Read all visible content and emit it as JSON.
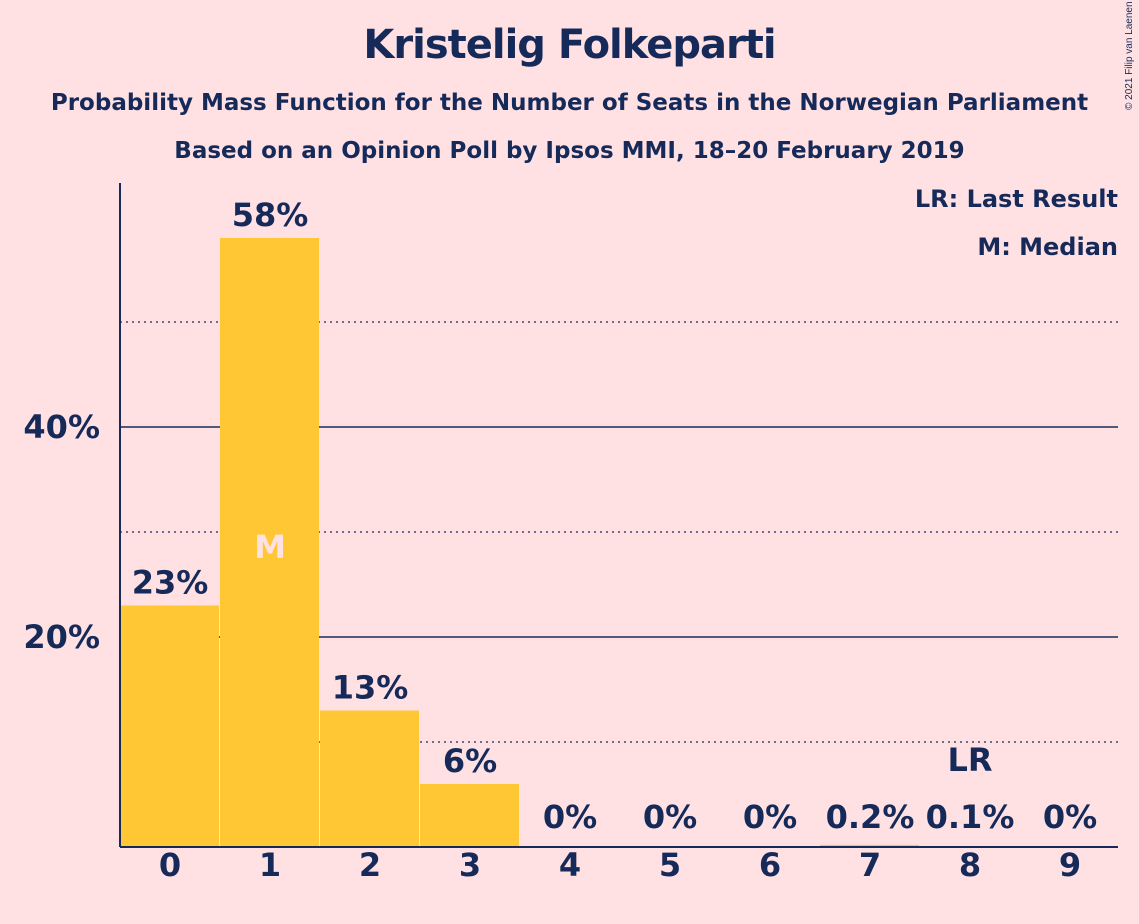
{
  "chart_data": {
    "type": "bar",
    "title": "Kristelig Folkeparti",
    "subtitle": "Probability Mass Function for the Number of Seats in the Norwegian Parliament",
    "subtitle2": "Based on an Opinion Poll by Ipsos MMI, 18–20 February 2019",
    "copyright": "© 2021 Filip van Laenen",
    "categories": [
      "0",
      "1",
      "2",
      "3",
      "4",
      "5",
      "6",
      "7",
      "8",
      "9"
    ],
    "values": [
      23,
      58,
      13,
      6,
      0,
      0,
      0,
      0.2,
      0.1,
      0
    ],
    "value_labels": [
      "23%",
      "58%",
      "13%",
      "6%",
      "0%",
      "0%",
      "0%",
      "0.2%",
      "0.1%",
      "0%"
    ],
    "ylim": [
      0,
      63
    ],
    "yticks": [
      20,
      40
    ],
    "ytick_labels": [
      "20%",
      "40%"
    ],
    "dotted_gridlines": [
      10,
      30,
      50
    ],
    "solid_gridlines": [
      20,
      40
    ],
    "median_index": 1,
    "median_marker": "M",
    "last_result_index": 8,
    "last_result_marker": "LR",
    "legend": [
      "LR: Last Result",
      "M: Median"
    ],
    "legend_position": "top-right",
    "colors": {
      "background": "#ffe1e3",
      "bar": "#ffc734",
      "text": "#162a5a",
      "median_marker": "#ffe1e3"
    }
  }
}
